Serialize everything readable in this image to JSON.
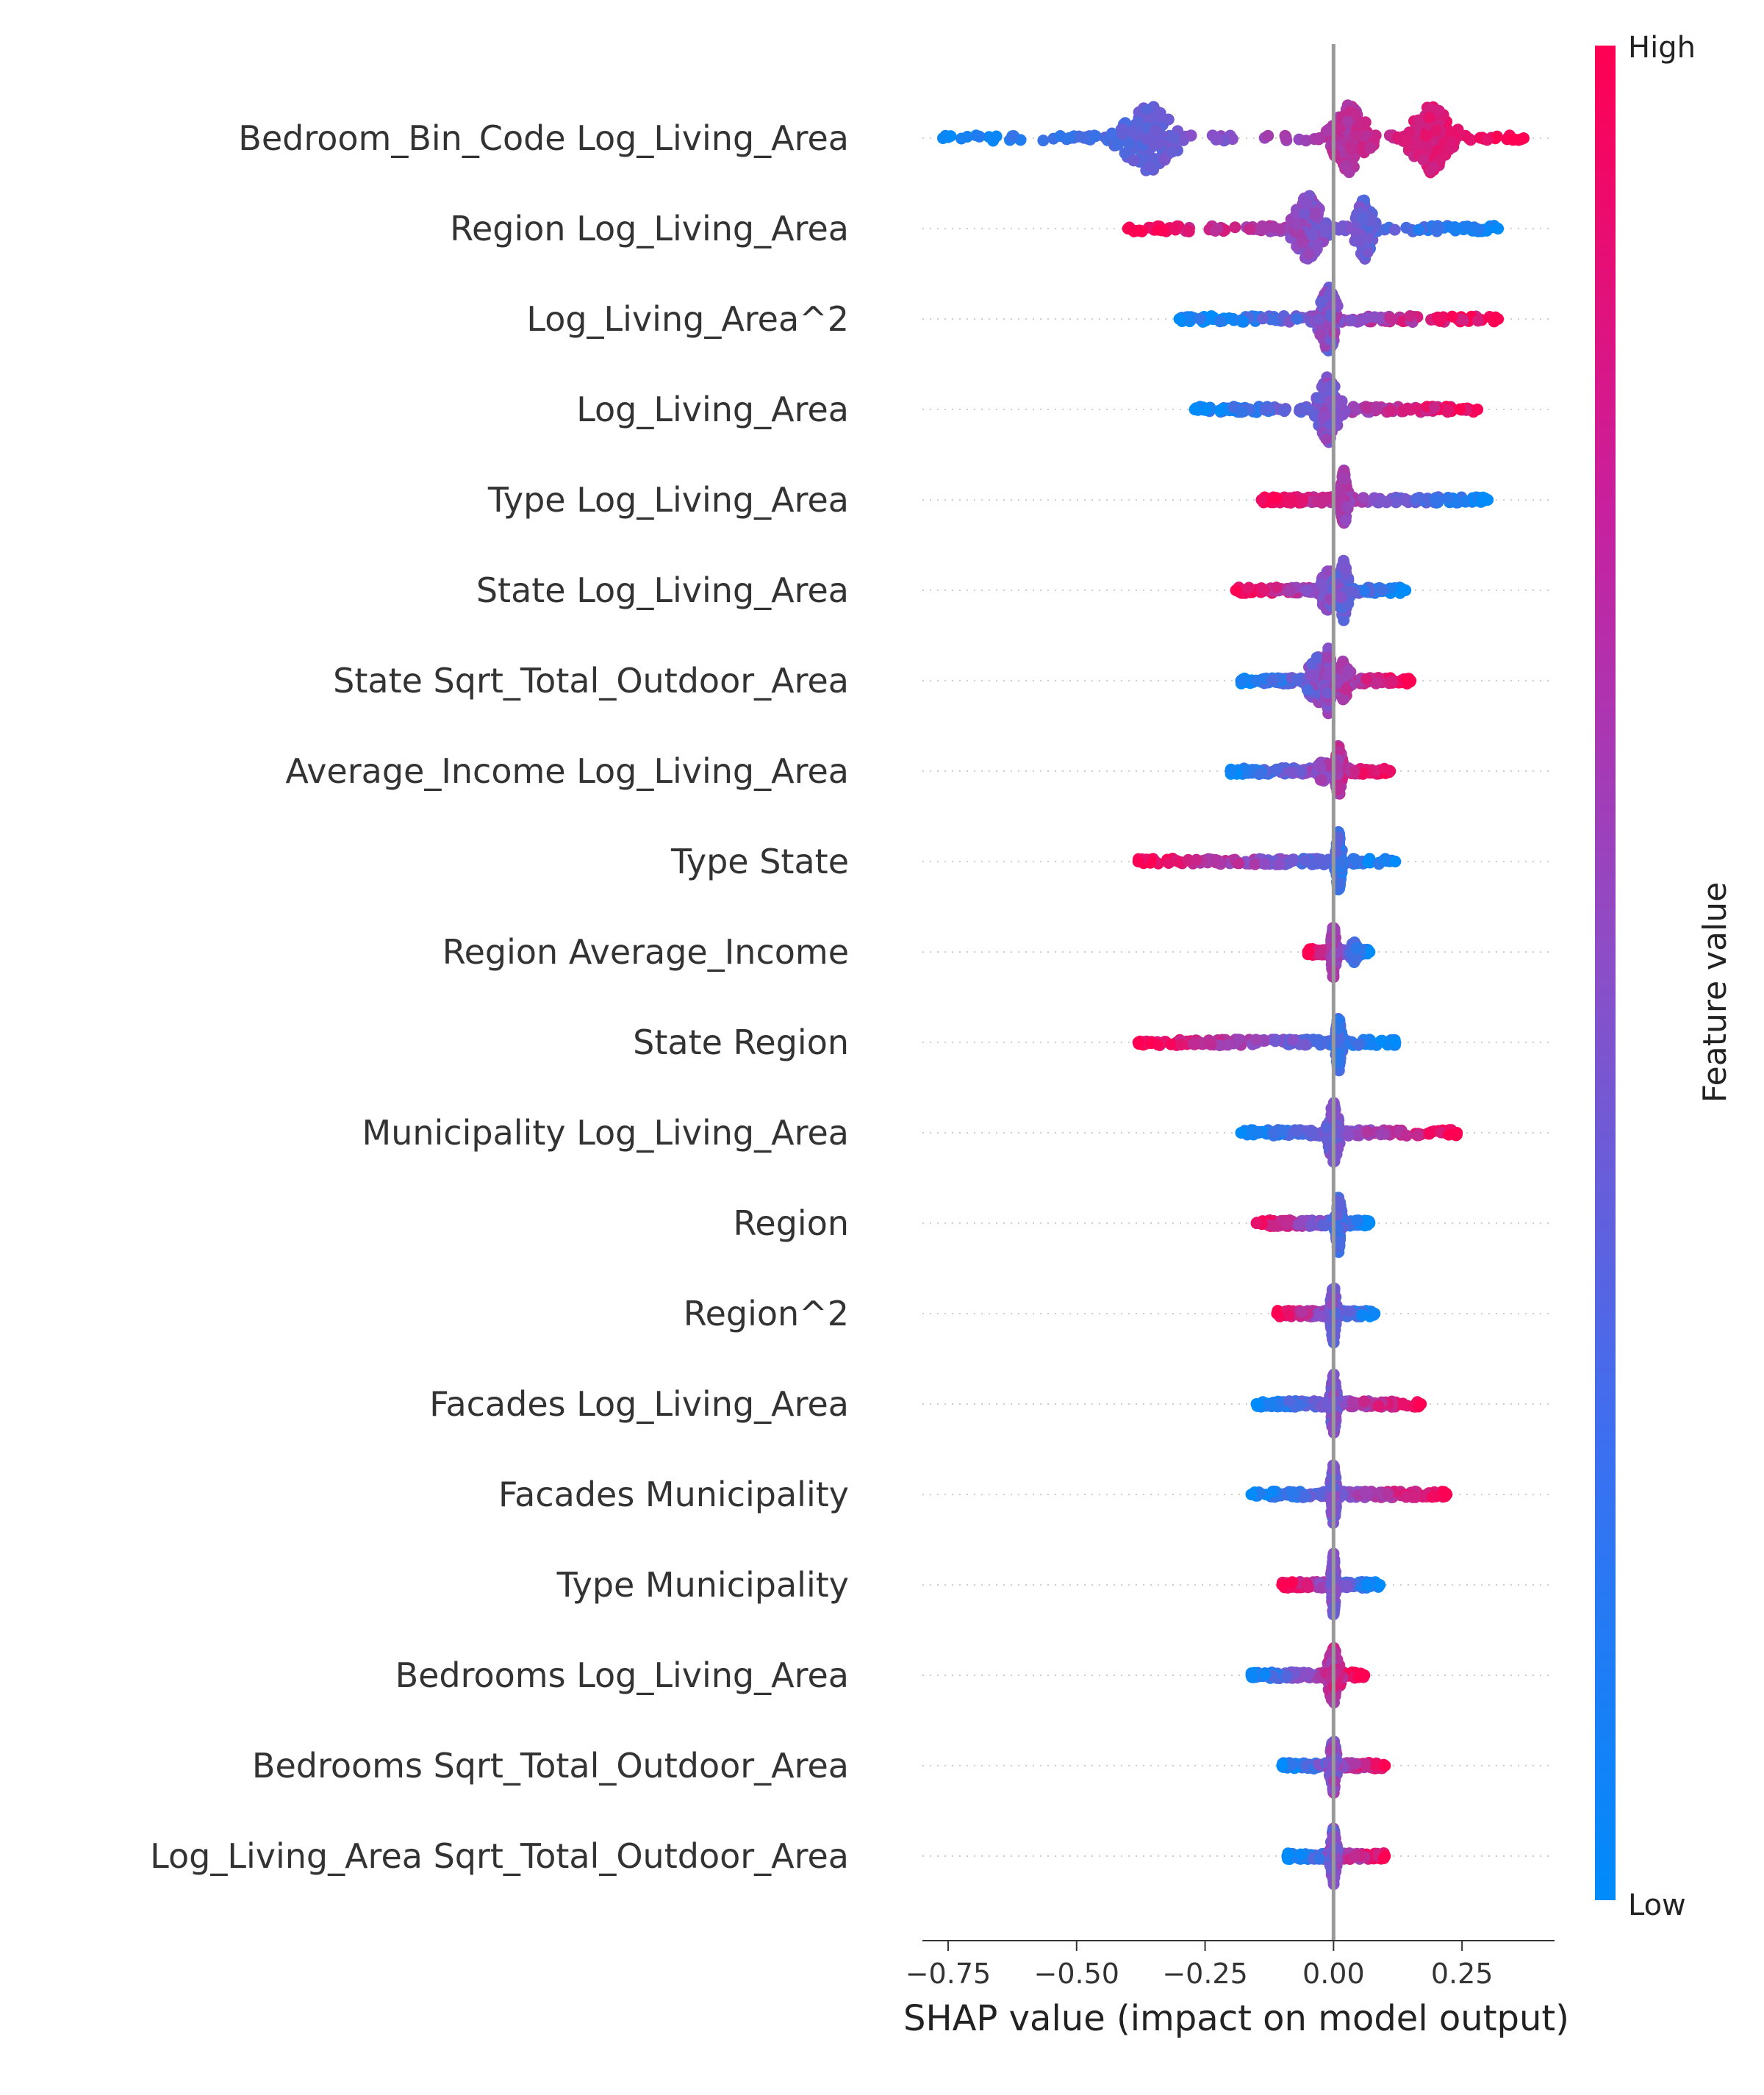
{
  "chart_data": {
    "type": "scatter",
    "subtype": "shap-beeswarm",
    "xlabel": "SHAP value (impact on model output)",
    "xlim": [
      -0.8,
      0.43
    ],
    "xticks": [
      -0.75,
      -0.5,
      -0.25,
      0.0,
      0.25
    ],
    "xtick_labels": [
      "−0.75",
      "−0.50",
      "−0.25",
      "0.00",
      "0.25"
    ],
    "zero_line": true,
    "grid": false,
    "colorbar": {
      "title": "Feature value",
      "high_label": "High",
      "low_label": "Low",
      "low_color": "#008bfb",
      "high_color": "#ff0052"
    },
    "features": [
      {
        "name": "Bedroom_Bin_Code Log_Living_Area",
        "min": -0.76,
        "max": 0.37,
        "low_side": "left",
        "spread": 0.07,
        "clusters": [
          {
            "center": -0.36,
            "width": 0.09,
            "height": 1.0
          },
          {
            "center": 0.03,
            "width": 0.06,
            "height": 1.0
          },
          {
            "center": 0.19,
            "width": 0.07,
            "height": 1.0
          }
        ]
      },
      {
        "name": "Region Log_Living_Area",
        "min": -0.4,
        "max": 0.32,
        "low_side": "right",
        "spread": 0.1,
        "clusters": [
          {
            "center": -0.05,
            "width": 0.05,
            "height": 1.0
          },
          {
            "center": 0.06,
            "width": 0.03,
            "height": 0.9
          }
        ]
      },
      {
        "name": "Log_Living_Area^2",
        "min": -0.3,
        "max": 0.32,
        "low_side": "left",
        "spread": 0.15,
        "clusters": [
          {
            "center": -0.01,
            "width": 0.03,
            "height": 1.0
          }
        ]
      },
      {
        "name": "Log_Living_Area",
        "min": -0.27,
        "max": 0.28,
        "low_side": "left",
        "spread": 0.12,
        "clusters": [
          {
            "center": -0.01,
            "width": 0.035,
            "height": 1.0
          }
        ]
      },
      {
        "name": "Type Log_Living_Area",
        "min": -0.14,
        "max": 0.3,
        "low_side": "right",
        "spread": 0.1,
        "clusters": [
          {
            "center": 0.02,
            "width": 0.012,
            "height": 0.9
          }
        ]
      },
      {
        "name": "State Log_Living_Area",
        "min": -0.19,
        "max": 0.14,
        "low_side": "right",
        "spread": 0.12,
        "clusters": [
          {
            "center": -0.01,
            "width": 0.03,
            "height": 0.65
          },
          {
            "center": 0.02,
            "width": 0.015,
            "height": 0.9
          }
        ]
      },
      {
        "name": "State Sqrt_Total_Outdoor_Area",
        "min": -0.18,
        "max": 0.15,
        "low_side": "left",
        "spread": 0.12,
        "clusters": [
          {
            "center": -0.03,
            "width": 0.04,
            "height": 0.7
          },
          {
            "center": -0.01,
            "width": 0.012,
            "height": 0.95
          },
          {
            "center": 0.02,
            "width": 0.025,
            "height": 0.6
          }
        ]
      },
      {
        "name": "Average_Income Log_Living_Area",
        "min": -0.2,
        "max": 0.11,
        "low_side": "left",
        "spread": 0.12,
        "clusters": [
          {
            "center": 0.01,
            "width": 0.012,
            "height": 0.8
          },
          {
            "center": -0.02,
            "width": 0.02,
            "height": 0.35
          }
        ]
      },
      {
        "name": "Type State",
        "min": -0.38,
        "max": 0.12,
        "low_side": "right",
        "spread": 0.12,
        "clusters": [
          {
            "center": 0.01,
            "width": 0.01,
            "height": 0.9
          }
        ]
      },
      {
        "name": "Region Average_Income",
        "min": -0.05,
        "max": 0.07,
        "low_side": "right",
        "spread": 0.08,
        "clusters": [
          {
            "center": 0.0,
            "width": 0.008,
            "height": 0.85
          },
          {
            "center": 0.04,
            "width": 0.015,
            "height": 0.3
          }
        ]
      },
      {
        "name": "State Region",
        "min": -0.38,
        "max": 0.12,
        "low_side": "right",
        "spread": 0.1,
        "clusters": [
          {
            "center": 0.01,
            "width": 0.01,
            "height": 0.9
          }
        ]
      },
      {
        "name": "Municipality Log_Living_Area",
        "min": -0.18,
        "max": 0.24,
        "low_side": "left",
        "spread": 0.1,
        "clusters": [
          {
            "center": 0.0,
            "width": 0.02,
            "height": 0.9
          }
        ]
      },
      {
        "name": "Region",
        "min": -0.15,
        "max": 0.07,
        "low_side": "right",
        "spread": 0.12,
        "clusters": [
          {
            "center": 0.01,
            "width": 0.01,
            "height": 0.9
          }
        ]
      },
      {
        "name": "Region^2",
        "min": -0.11,
        "max": 0.08,
        "low_side": "right",
        "spread": 0.12,
        "clusters": [
          {
            "center": 0.0,
            "width": 0.01,
            "height": 0.9
          }
        ]
      },
      {
        "name": "Facades Log_Living_Area",
        "min": -0.15,
        "max": 0.17,
        "low_side": "left",
        "spread": 0.12,
        "clusters": [
          {
            "center": 0.0,
            "width": 0.01,
            "height": 0.9
          }
        ]
      },
      {
        "name": "Facades Municipality",
        "min": -0.16,
        "max": 0.22,
        "low_side": "left",
        "spread": 0.1,
        "clusters": [
          {
            "center": 0.0,
            "width": 0.01,
            "height": 0.9
          }
        ]
      },
      {
        "name": "Type Municipality",
        "min": -0.1,
        "max": 0.09,
        "low_side": "right",
        "spread": 0.12,
        "clusters": [
          {
            "center": 0.0,
            "width": 0.008,
            "height": 0.9
          }
        ]
      },
      {
        "name": "Bedrooms Log_Living_Area",
        "min": -0.16,
        "max": 0.06,
        "low_side": "left",
        "spread": 0.12,
        "clusters": [
          {
            "center": 0.0,
            "width": 0.02,
            "height": 0.85
          }
        ]
      },
      {
        "name": "Bedrooms Sqrt_Total_Outdoor_Area",
        "min": -0.1,
        "max": 0.1,
        "low_side": "left",
        "spread": 0.15,
        "clusters": [
          {
            "center": 0.0,
            "width": 0.012,
            "height": 0.85
          }
        ]
      },
      {
        "name": "Log_Living_Area Sqrt_Total_Outdoor_Area",
        "min": -0.09,
        "max": 0.1,
        "low_side": "left",
        "spread": 0.15,
        "clusters": [
          {
            "center": 0.0,
            "width": 0.01,
            "height": 0.85
          }
        ]
      }
    ]
  }
}
